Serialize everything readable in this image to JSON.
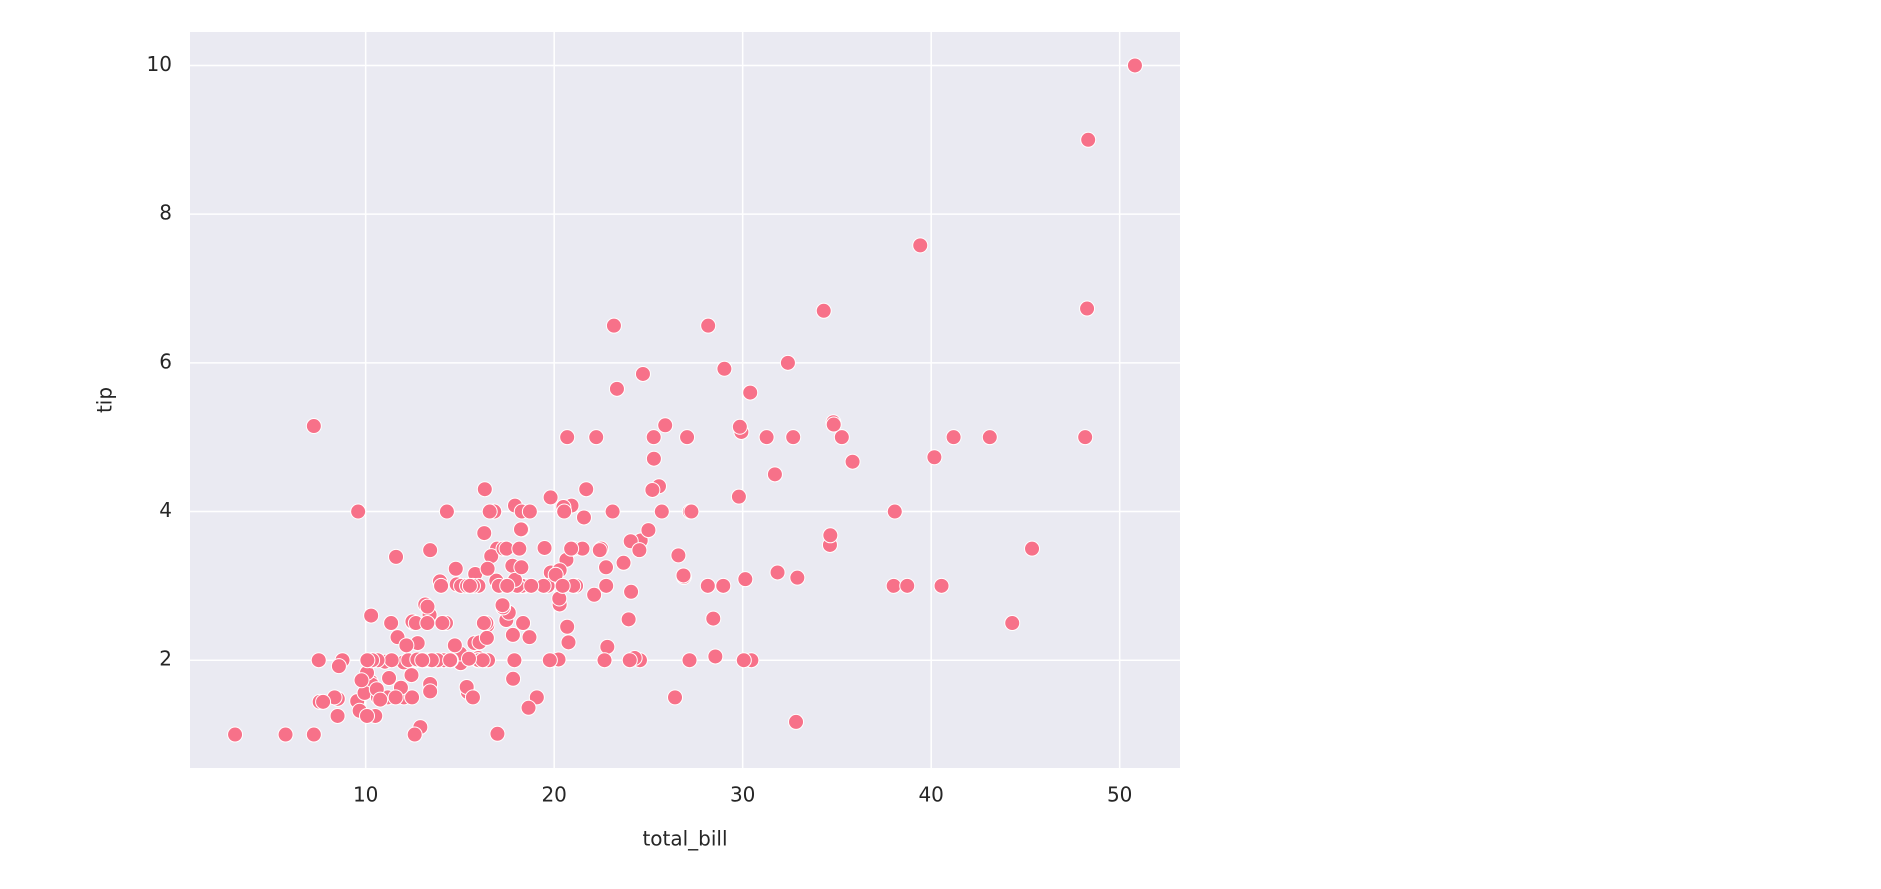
{
  "chart_data": {
    "type": "scatter",
    "xlabel": "total_bill",
    "ylabel": "tip",
    "color": "#f77189",
    "grid": true,
    "xlim": [
      0.68,
      53.2
    ],
    "ylim": [
      0.55,
      10.45
    ],
    "xticks": [
      10,
      20,
      30,
      40,
      50
    ],
    "yticks": [
      2,
      4,
      6,
      8,
      10
    ],
    "x": [
      16.99,
      10.34,
      21.01,
      23.68,
      24.59,
      25.29,
      8.77,
      26.88,
      15.04,
      14.78,
      10.27,
      35.26,
      15.42,
      18.43,
      14.83,
      21.58,
      10.33,
      16.29,
      16.97,
      20.65,
      17.92,
      20.29,
      15.77,
      39.42,
      19.82,
      17.81,
      13.37,
      12.69,
      21.7,
      19.65,
      9.55,
      18.35,
      15.06,
      20.69,
      17.78,
      24.06,
      16.31,
      16.93,
      18.69,
      31.27,
      16.04,
      17.46,
      13.94,
      9.68,
      30.4,
      18.29,
      22.23,
      32.4,
      28.55,
      18.04,
      12.54,
      10.29,
      34.81,
      9.94,
      25.56,
      19.49,
      38.01,
      26.41,
      11.24,
      48.27,
      20.29,
      13.81,
      11.02,
      18.29,
      17.59,
      20.08,
      16.45,
      3.07,
      20.23,
      15.01,
      12.02,
      17.07,
      26.86,
      25.28,
      14.73,
      10.51,
      17.92,
      27.2,
      22.76,
      17.29,
      19.44,
      16.66,
      10.07,
      32.68,
      15.98,
      34.83,
      13.03,
      18.28,
      24.71,
      21.16,
      28.97,
      22.49,
      5.75,
      16.32,
      22.75,
      40.17,
      27.28,
      12.03,
      21.01,
      12.46,
      11.35,
      15.38,
      44.3,
      22.42,
      20.92,
      15.36,
      20.49,
      25.21,
      18.24,
      14.31,
      14.0,
      7.25,
      38.07,
      23.95,
      25.71,
      17.31,
      29.93,
      10.65,
      12.43,
      24.08,
      11.69,
      13.42,
      14.26,
      15.95,
      12.48,
      29.8,
      8.52,
      14.52,
      11.38,
      22.82,
      19.08,
      20.27,
      11.17,
      12.26,
      18.26,
      8.51,
      10.33,
      14.15,
      16.0,
      13.16,
      17.47,
      34.3,
      41.19,
      27.05,
      16.43,
      8.35,
      18.64,
      11.87,
      9.78,
      7.51,
      14.07,
      13.13,
      17.26,
      24.55,
      19.77,
      29.85,
      48.17,
      25.0,
      13.39,
      16.49,
      21.5,
      12.66,
      16.21,
      13.81,
      17.51,
      24.52,
      20.76,
      31.71,
      10.59,
      10.63,
      50.81,
      15.81,
      7.25,
      31.85,
      16.82,
      32.9,
      17.89,
      14.48,
      9.6,
      34.63,
      34.65,
      23.33,
      45.35,
      23.17,
      40.55,
      20.69,
      20.9,
      30.46,
      18.15,
      23.1,
      15.69,
      19.81,
      28.44,
      15.48,
      16.58,
      7.56,
      10.34,
      43.11,
      13.0,
      13.51,
      18.71,
      12.74,
      13.0,
      16.4,
      20.53,
      16.47,
      26.59,
      38.73,
      24.27,
      12.76,
      30.06,
      25.89,
      48.33,
      13.27,
      28.17,
      12.9,
      28.15,
      11.59,
      7.74,
      30.14,
      12.16,
      13.42,
      8.58,
      15.98,
      13.42,
      16.27,
      10.09,
      20.45,
      13.28,
      22.12,
      24.01,
      15.69,
      11.61,
      10.77,
      15.53,
      10.07,
      12.6,
      32.83,
      35.83,
      29.03,
      27.18,
      22.67,
      17.82,
      18.78
    ],
    "values": [
      1.01,
      1.66,
      3.5,
      3.31,
      3.61,
      4.71,
      2.0,
      3.12,
      1.96,
      3.23,
      1.71,
      5.0,
      1.57,
      3.0,
      3.02,
      3.92,
      1.67,
      3.71,
      3.5,
      3.35,
      4.08,
      2.75,
      2.23,
      7.58,
      3.18,
      2.34,
      2.0,
      2.0,
      4.3,
      3.0,
      1.45,
      2.5,
      3.0,
      2.45,
      3.27,
      3.6,
      2.0,
      3.07,
      2.31,
      5.0,
      2.24,
      2.54,
      3.06,
      1.32,
      5.6,
      3.0,
      5.0,
      6.0,
      2.05,
      3.0,
      2.5,
      2.6,
      5.2,
      1.56,
      4.34,
      3.51,
      3.0,
      1.5,
      1.76,
      6.73,
      3.21,
      2.0,
      1.98,
      3.76,
      2.64,
      3.15,
      2.47,
      1.0,
      2.01,
      2.09,
      1.97,
      3.0,
      3.14,
      5.0,
      2.2,
      1.25,
      3.08,
      4.0,
      3.0,
      2.71,
      3.0,
      3.4,
      1.83,
      5.0,
      2.03,
      5.17,
      2.0,
      4.0,
      5.85,
      3.0,
      3.0,
      3.5,
      1.0,
      4.3,
      3.25,
      4.73,
      4.0,
      1.5,
      3.0,
      1.5,
      2.5,
      3.0,
      2.5,
      3.48,
      4.08,
      1.64,
      4.06,
      4.29,
      3.76,
      4.0,
      3.0,
      1.0,
      4.0,
      2.55,
      4.0,
      3.5,
      5.07,
      1.5,
      1.8,
      2.92,
      2.31,
      1.68,
      2.5,
      2.0,
      2.52,
      4.2,
      1.48,
      2.0,
      2.0,
      2.18,
      1.5,
      2.83,
      1.5,
      2.0,
      3.25,
      1.25,
      2.0,
      2.0,
      2.0,
      2.75,
      3.5,
      6.7,
      5.0,
      5.0,
      2.3,
      1.5,
      1.36,
      1.63,
      1.73,
      2.0,
      2.5,
      2.0,
      2.74,
      2.0,
      2.0,
      5.14,
      5.0,
      3.75,
      2.61,
      2.0,
      3.5,
      2.5,
      2.0,
      2.0,
      3.0,
      3.48,
      2.24,
      4.5,
      1.61,
      2.0,
      10.0,
      3.16,
      5.15,
      3.18,
      4.0,
      3.11,
      2.0,
      2.0,
      4.0,
      3.55,
      3.68,
      5.65,
      3.5,
      6.5,
      3.0,
      5.0,
      3.5,
      2.0,
      3.5,
      4.0,
      1.5,
      4.19,
      2.56,
      2.02,
      4.0,
      1.44,
      2.0,
      5.0,
      2.0,
      2.0,
      4.0,
      2.01,
      2.0,
      2.5,
      4.0,
      3.23,
      3.41,
      3.0,
      2.03,
      2.23,
      2.0,
      5.16,
      9.0,
      2.5,
      6.5,
      1.1,
      3.0,
      1.5,
      1.44,
      3.09,
      2.2,
      3.48,
      1.92,
      3.0,
      1.58,
      2.5,
      2.0,
      3.0,
      2.72,
      2.88,
      2.0,
      3.0,
      3.39,
      1.47,
      3.0,
      1.25,
      1.0,
      1.17,
      4.67,
      5.92,
      2.0,
      2.0,
      1.75,
      3.0
    ]
  }
}
